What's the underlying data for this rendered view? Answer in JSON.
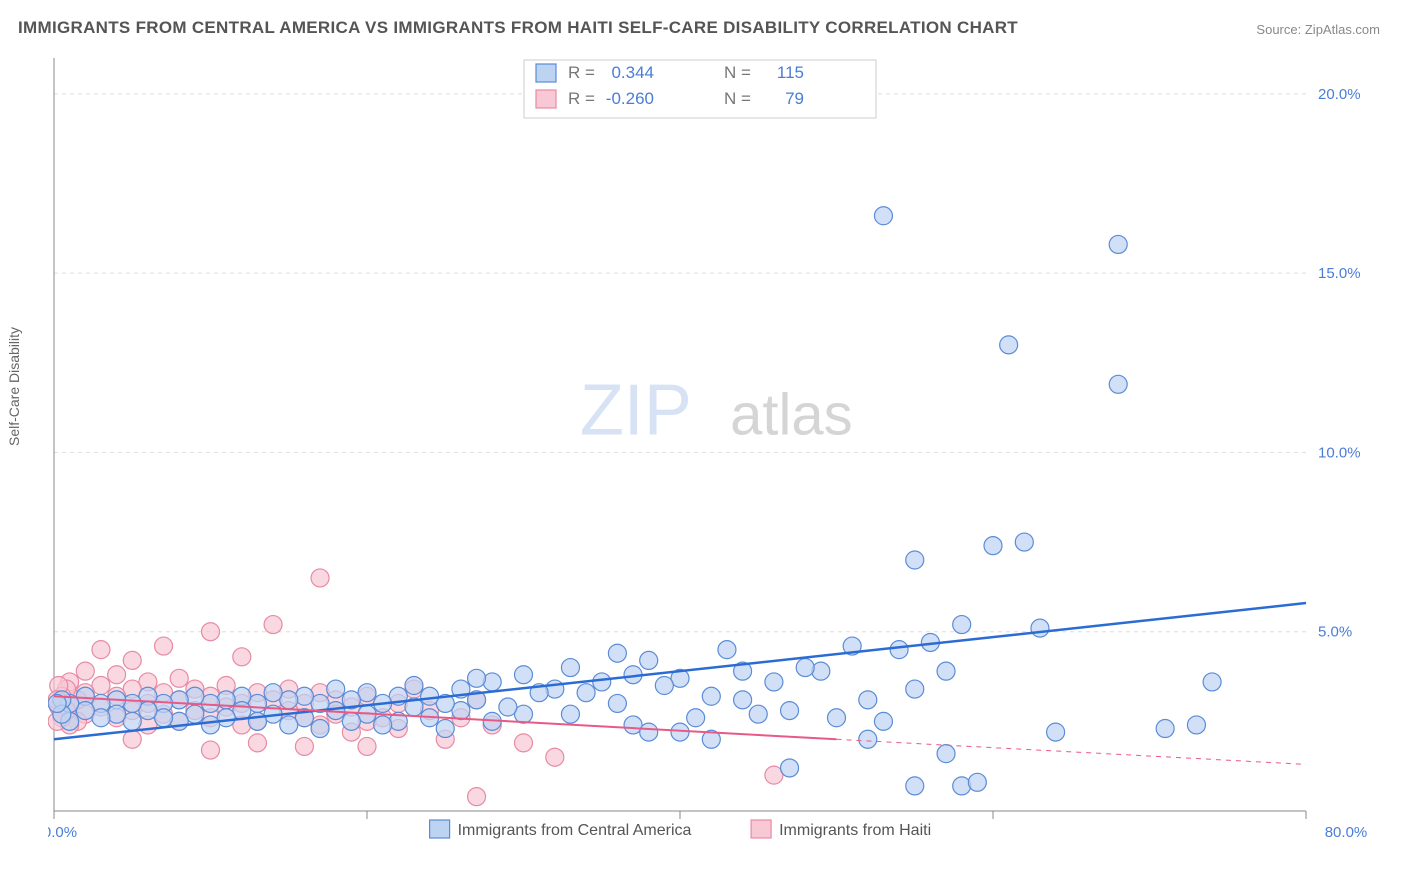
{
  "title": "IMMIGRANTS FROM CENTRAL AMERICA VS IMMIGRANTS FROM HAITI SELF-CARE DISABILITY CORRELATION CHART",
  "source_label": "Source:",
  "source_name": "ZipAtlas.com",
  "ylabel": "Self-Care Disability",
  "watermark_a": "ZIP",
  "watermark_b": "atlas",
  "chart": {
    "type": "scatter",
    "xlim": [
      0,
      80
    ],
    "ylim": [
      0,
      21
    ],
    "yticks": [
      5,
      10,
      15,
      20
    ],
    "ytick_labels": [
      "5.0%",
      "10.0%",
      "15.0%",
      "20.0%"
    ],
    "xticks": [
      0,
      20,
      40,
      60,
      80
    ],
    "xtick_positions_visible": [
      20,
      40,
      60
    ],
    "x_origin_label": "0.0%",
    "x_end_label": "80.0%",
    "marker_radius": 9,
    "background_color": "#ffffff",
    "grid_color": "#dddddd",
    "axis_color": "#888888",
    "series": [
      {
        "name": "Immigrants from Central America",
        "color_fill": "#bdd3f2",
        "color_stroke": "#5a8cd8",
        "trend_color": "#2b6cd4",
        "r": "0.344",
        "n": "115",
        "trend": {
          "x1": 0,
          "y1": 2.0,
          "x2": 80,
          "y2": 5.8
        },
        "points": [
          [
            53,
            16.6
          ],
          [
            68,
            15.8
          ],
          [
            61,
            13.0
          ],
          [
            68,
            11.9
          ],
          [
            60,
            7.4
          ],
          [
            62,
            7.5
          ],
          [
            55,
            7.0
          ],
          [
            63,
            5.1
          ],
          [
            74,
            3.6
          ],
          [
            73,
            2.4
          ],
          [
            71,
            2.3
          ],
          [
            64,
            2.2
          ],
          [
            58,
            5.2
          ],
          [
            56,
            4.7
          ],
          [
            54,
            4.5
          ],
          [
            55,
            0.7
          ],
          [
            58,
            0.7
          ],
          [
            59,
            0.8
          ],
          [
            57,
            1.6
          ],
          [
            52,
            2.0
          ],
          [
            51,
            4.6
          ],
          [
            49,
            3.9
          ],
          [
            48,
            4.0
          ],
          [
            47,
            2.8
          ],
          [
            45,
            2.7
          ],
          [
            44,
            3.9
          ],
          [
            43,
            4.5
          ],
          [
            42,
            3.2
          ],
          [
            41,
            2.6
          ],
          [
            40,
            3.7
          ],
          [
            39,
            3.5
          ],
          [
            38,
            4.2
          ],
          [
            37,
            2.4
          ],
          [
            36,
            3.0
          ],
          [
            35,
            3.6
          ],
          [
            34,
            3.3
          ],
          [
            33,
            2.7
          ],
          [
            33,
            4.0
          ],
          [
            32,
            3.4
          ],
          [
            31,
            3.3
          ],
          [
            30,
            2.7
          ],
          [
            30,
            3.8
          ],
          [
            29,
            2.9
          ],
          [
            28,
            3.6
          ],
          [
            28,
            2.5
          ],
          [
            27,
            3.1
          ],
          [
            27,
            3.7
          ],
          [
            26,
            2.8
          ],
          [
            26,
            3.4
          ],
          [
            25,
            3.0
          ],
          [
            25,
            2.3
          ],
          [
            47,
            1.2
          ],
          [
            44,
            3.1
          ],
          [
            46,
            3.6
          ],
          [
            50,
            2.6
          ],
          [
            52,
            3.1
          ],
          [
            53,
            2.5
          ],
          [
            55,
            3.4
          ],
          [
            57,
            3.9
          ],
          [
            37,
            3.8
          ],
          [
            36,
            4.4
          ],
          [
            38,
            2.2
          ],
          [
            40,
            2.2
          ],
          [
            42,
            2.0
          ],
          [
            24,
            3.2
          ],
          [
            24,
            2.6
          ],
          [
            23,
            3.5
          ],
          [
            23,
            2.9
          ],
          [
            22,
            3.2
          ],
          [
            22,
            2.5
          ],
          [
            21,
            3.0
          ],
          [
            21,
            2.4
          ],
          [
            20,
            3.3
          ],
          [
            20,
            2.7
          ],
          [
            19,
            3.1
          ],
          [
            19,
            2.5
          ],
          [
            18,
            3.4
          ],
          [
            18,
            2.8
          ],
          [
            17,
            3.0
          ],
          [
            17,
            2.3
          ],
          [
            16,
            3.2
          ],
          [
            16,
            2.6
          ],
          [
            15,
            3.1
          ],
          [
            15,
            2.4
          ],
          [
            14,
            3.3
          ],
          [
            14,
            2.7
          ],
          [
            13,
            3.0
          ],
          [
            13,
            2.5
          ],
          [
            12,
            3.2
          ],
          [
            12,
            2.8
          ],
          [
            11,
            3.1
          ],
          [
            11,
            2.6
          ],
          [
            10,
            3.0
          ],
          [
            10,
            2.4
          ],
          [
            9,
            3.2
          ],
          [
            9,
            2.7
          ],
          [
            8,
            3.1
          ],
          [
            8,
            2.5
          ],
          [
            7,
            3.0
          ],
          [
            7,
            2.6
          ],
          [
            6,
            3.2
          ],
          [
            6,
            2.8
          ],
          [
            5,
            3.0
          ],
          [
            5,
            2.5
          ],
          [
            4,
            3.1
          ],
          [
            4,
            2.7
          ],
          [
            3,
            3.0
          ],
          [
            3,
            2.6
          ],
          [
            2,
            3.2
          ],
          [
            2,
            2.8
          ],
          [
            1,
            3.0
          ],
          [
            1,
            2.5
          ],
          [
            0.5,
            3.1
          ],
          [
            0.5,
            2.7
          ],
          [
            0.2,
            3.0
          ]
        ]
      },
      {
        "name": "Immigrants from Haiti",
        "color_fill": "#f8c8d4",
        "color_stroke": "#e88aa4",
        "trend_color": "#e85a86",
        "r": "-0.260",
        "n": "79",
        "trend_solid": {
          "x1": 0,
          "y1": 3.2,
          "x2": 50,
          "y2": 2.0
        },
        "trend_dash": {
          "x1": 50,
          "y1": 2.0,
          "x2": 80,
          "y2": 1.3
        },
        "points": [
          [
            46,
            1.0
          ],
          [
            27,
            0.4
          ],
          [
            32,
            1.5
          ],
          [
            30,
            1.9
          ],
          [
            28,
            2.4
          ],
          [
            27,
            3.1
          ],
          [
            26,
            2.6
          ],
          [
            25,
            2.0
          ],
          [
            24,
            2.8
          ],
          [
            23,
            3.4
          ],
          [
            22,
            2.3
          ],
          [
            22,
            3.0
          ],
          [
            21,
            2.6
          ],
          [
            20,
            3.2
          ],
          [
            20,
            2.5
          ],
          [
            19,
            2.9
          ],
          [
            19,
            2.2
          ],
          [
            18,
            3.1
          ],
          [
            18,
            2.7
          ],
          [
            17,
            3.3
          ],
          [
            17,
            2.4
          ],
          [
            17,
            6.5
          ],
          [
            16,
            3.0
          ],
          [
            16,
            2.6
          ],
          [
            15,
            3.4
          ],
          [
            15,
            2.8
          ],
          [
            14,
            3.1
          ],
          [
            14,
            5.2
          ],
          [
            13,
            3.3
          ],
          [
            13,
            2.5
          ],
          [
            12,
            4.3
          ],
          [
            12,
            3.0
          ],
          [
            12,
            2.4
          ],
          [
            11,
            3.5
          ],
          [
            11,
            2.9
          ],
          [
            10,
            3.2
          ],
          [
            10,
            5.0
          ],
          [
            10,
            2.6
          ],
          [
            9,
            3.4
          ],
          [
            9,
            2.8
          ],
          [
            8,
            3.7
          ],
          [
            8,
            3.1
          ],
          [
            8,
            2.5
          ],
          [
            7,
            4.6
          ],
          [
            7,
            3.3
          ],
          [
            7,
            2.7
          ],
          [
            6,
            3.6
          ],
          [
            6,
            3.0
          ],
          [
            6,
            2.4
          ],
          [
            5,
            4.2
          ],
          [
            5,
            3.4
          ],
          [
            5,
            2.8
          ],
          [
            4,
            3.8
          ],
          [
            4,
            3.2
          ],
          [
            4,
            2.6
          ],
          [
            3,
            3.5
          ],
          [
            3,
            4.5
          ],
          [
            3,
            2.9
          ],
          [
            2,
            3.3
          ],
          [
            2,
            2.7
          ],
          [
            2,
            3.9
          ],
          [
            1.5,
            3.1
          ],
          [
            1.5,
            2.5
          ],
          [
            1,
            3.6
          ],
          [
            1,
            3.0
          ],
          [
            1,
            2.4
          ],
          [
            0.8,
            3.4
          ],
          [
            0.8,
            2.8
          ],
          [
            0.5,
            3.2
          ],
          [
            0.5,
            2.6
          ],
          [
            0.3,
            3.5
          ],
          [
            0.3,
            2.9
          ],
          [
            0.2,
            3.1
          ],
          [
            0.2,
            2.5
          ],
          [
            5,
            2.0
          ],
          [
            10,
            1.7
          ],
          [
            13,
            1.9
          ],
          [
            16,
            1.8
          ],
          [
            20,
            1.8
          ]
        ]
      }
    ],
    "stats_box": {
      "rows": [
        {
          "swatch": "b",
          "r_label": "R =",
          "r_val": "0.344",
          "n_label": "N =",
          "n_val": "115"
        },
        {
          "swatch": "p",
          "r_label": "R =",
          "r_val": "-0.260",
          "n_label": "N =",
          "n_val": "79"
        }
      ]
    },
    "legend": [
      {
        "swatch": "b",
        "label": "Immigrants from Central America"
      },
      {
        "swatch": "p",
        "label": "Immigrants from Haiti"
      }
    ]
  }
}
